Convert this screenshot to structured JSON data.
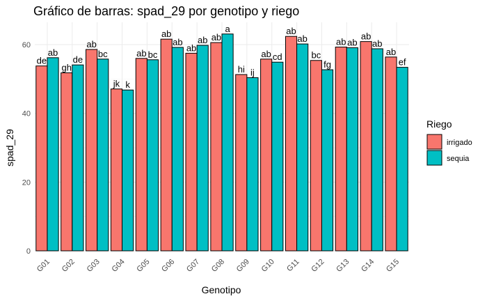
{
  "chart_data": {
    "type": "bar",
    "title": "Gráfico de barras: spad_29 por genotipo y riego",
    "xlabel": "Genotipo",
    "ylabel": "spad_29",
    "ylim": [
      0,
      66.5
    ],
    "yticks": [
      0,
      20,
      40,
      60
    ],
    "grid": true,
    "legend_position": "right",
    "legend_title": "Riego",
    "categories": [
      "G01",
      "G02",
      "G03",
      "G04",
      "G05",
      "G06",
      "G07",
      "G08",
      "G09",
      "G10",
      "G11",
      "G12",
      "G13",
      "G14",
      "G15"
    ],
    "series": [
      {
        "name": "irrigado",
        "color": "#F8766D",
        "values": [
          53.8,
          51.8,
          58.6,
          47.1,
          56.0,
          61.6,
          57.5,
          60.6,
          51.3,
          55.8,
          62.4,
          55.4,
          59.3,
          60.9,
          56.4
        ],
        "labels": [
          "de",
          "gh",
          "ab",
          "jk",
          "ab",
          "ab",
          "ab",
          "ab",
          "hi",
          "ab",
          "ab",
          "bc",
          "ab",
          "ab",
          "ab"
        ]
      },
      {
        "name": "sequia",
        "color": "#00BFC4",
        "values": [
          56.2,
          54.1,
          55.8,
          46.8,
          55.6,
          59.2,
          59.8,
          63.1,
          50.4,
          54.9,
          60.2,
          52.7,
          59.1,
          58.8,
          53.4
        ],
        "labels": [
          "ab",
          "de",
          "bc",
          "k",
          "bc",
          "ab",
          "ab",
          "a",
          "ij",
          "cd",
          "ab",
          "fg",
          "ab",
          "ab",
          "ef"
        ]
      }
    ]
  }
}
